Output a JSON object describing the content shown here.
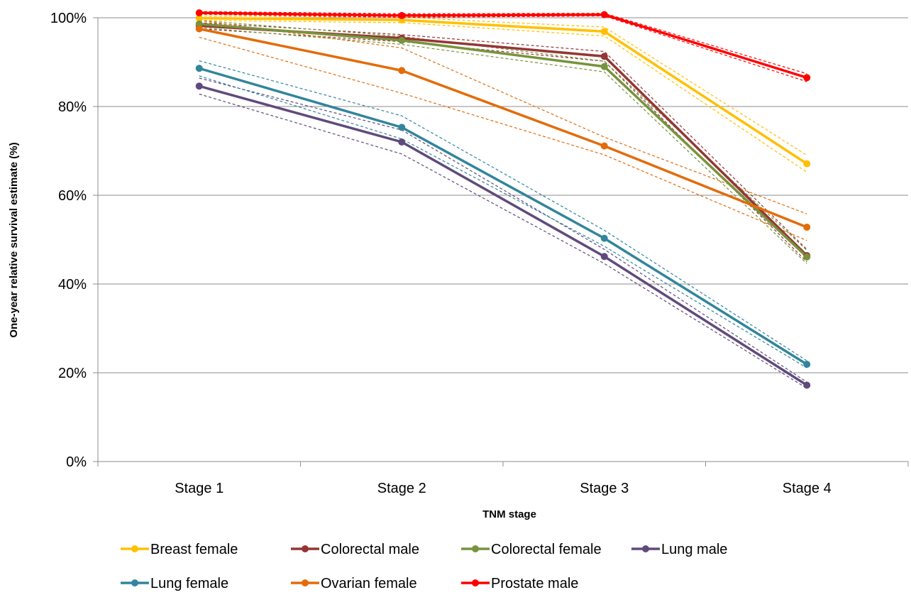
{
  "chart_data": {
    "type": "line",
    "title": "",
    "xlabel": "TNM stage",
    "ylabel": "One-year relative survival estimate (%)",
    "categories": [
      "Stage 1",
      "Stage 2",
      "Stage 3",
      "Stage 4"
    ],
    "ylim": [
      0,
      100
    ],
    "yticks": [
      0,
      20,
      40,
      60,
      80,
      100
    ],
    "ytick_labels": [
      "0%",
      "20%",
      "40%",
      "60%",
      "80%",
      "100%"
    ],
    "grid": true,
    "legend_position": "bottom",
    "series": [
      {
        "name": "Breast female",
        "color": "#FFC000",
        "values": [
          99.9,
          99.5,
          96.9,
          67.1
        ],
        "ci_lower": [
          99.4,
          98.9,
          95.9,
          65.2
        ],
        "ci_upper": [
          100.4,
          100.1,
          97.9,
          69.0
        ]
      },
      {
        "name": "Colorectal male",
        "color": "#943634",
        "values": [
          98.2,
          95.4,
          91.3,
          46.4
        ],
        "ci_lower": [
          97.5,
          94.6,
          90.2,
          45.0
        ],
        "ci_upper": [
          98.9,
          96.2,
          92.4,
          47.8
        ]
      },
      {
        "name": "Colorectal female",
        "color": "#77933C",
        "values": [
          98.6,
          94.9,
          89.0,
          46.1
        ],
        "ci_lower": [
          97.8,
          94.0,
          87.8,
          44.6
        ],
        "ci_upper": [
          99.4,
          95.8,
          90.2,
          47.6
        ]
      },
      {
        "name": "Lung male",
        "color": "#604A7B",
        "values": [
          84.6,
          72.0,
          46.2,
          17.2
        ],
        "ci_lower": [
          82.8,
          69.3,
          44.6,
          16.5
        ],
        "ci_upper": [
          86.4,
          74.7,
          47.8,
          17.9
        ]
      },
      {
        "name": "Lung female",
        "color": "#31859C",
        "values": [
          88.6,
          75.3,
          50.3,
          21.9
        ],
        "ci_lower": [
          86.9,
          72.7,
          48.5,
          21.1
        ],
        "ci_upper": [
          90.3,
          77.9,
          52.1,
          22.7
        ]
      },
      {
        "name": "Ovarian female",
        "color": "#E36C09",
        "values": [
          97.5,
          88.1,
          71.1,
          52.8
        ],
        "ci_lower": [
          95.6,
          83.0,
          69.1,
          49.8
        ],
        "ci_upper": [
          99.4,
          93.2,
          73.1,
          55.8
        ]
      },
      {
        "name": "Prostate male",
        "color": "#FF0000",
        "values": [
          101.1,
          100.5,
          100.7,
          86.5
        ],
        "ci_lower": [
          100.8,
          100.1,
          100.4,
          85.6
        ],
        "ci_upper": [
          101.4,
          100.9,
          101.0,
          87.4
        ]
      }
    ]
  }
}
